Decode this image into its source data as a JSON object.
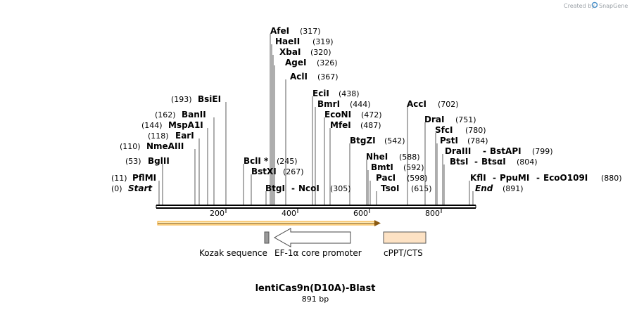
{
  "credit": {
    "prefix": "Created by",
    "brand": "SnapGene"
  },
  "map": {
    "title": "lentiCas9n(D10A)-Blast",
    "length_label": "891 bp",
    "start_label": "Start",
    "start_pos": "(0)",
    "end_label": "End",
    "end_pos": "(891)",
    "ticks": [
      "200",
      "400",
      "600",
      "800"
    ]
  },
  "enzymes": [
    {
      "name": "PflMI",
      "pos": "(11)"
    },
    {
      "name": "BglII",
      "pos": "(53)"
    },
    {
      "name": "NmeAIII",
      "pos": "(110)"
    },
    {
      "name": "EarI",
      "pos": "(118)"
    },
    {
      "name": "MspA1I",
      "pos": "(144)"
    },
    {
      "name": "BanII",
      "pos": "(162)"
    },
    {
      "name": "BsiEI",
      "pos": "(193)"
    },
    {
      "name": "BclI *",
      "pos": "(245)"
    },
    {
      "name": "BstXI",
      "pos": "(267)"
    },
    {
      "name": "BtgI",
      "pos": ""
    },
    {
      "name": "NcoI",
      "pos": "(305)"
    },
    {
      "name": "AfeI",
      "pos": "(317)"
    },
    {
      "name": "HaeII",
      "pos": "(319)"
    },
    {
      "name": "XbaI",
      "pos": "(320)"
    },
    {
      "name": "AgeI",
      "pos": "(326)"
    },
    {
      "name": "AclI",
      "pos": "(367)"
    },
    {
      "name": "EciI",
      "pos": "(438)"
    },
    {
      "name": "BmrI",
      "pos": "(444)"
    },
    {
      "name": "EcoNI",
      "pos": "(472)"
    },
    {
      "name": "MfeI",
      "pos": "(487)"
    },
    {
      "name": "BtgZI",
      "pos": "(542)"
    },
    {
      "name": "NheI",
      "pos": "(588)"
    },
    {
      "name": "BmtI",
      "pos": "(592)"
    },
    {
      "name": "PacI",
      "pos": "(598)"
    },
    {
      "name": "TsoI",
      "pos": "(615)"
    },
    {
      "name": "AccI",
      "pos": "(702)"
    },
    {
      "name": "DraI",
      "pos": "(751)"
    },
    {
      "name": "SfcI",
      "pos": "(780)"
    },
    {
      "name": "PstI",
      "pos": "(784)"
    },
    {
      "name": "DraIII",
      "pos": ""
    },
    {
      "name": "BstAPI",
      "pos": "(799)"
    },
    {
      "name": "BtsI",
      "pos": ""
    },
    {
      "name": "BtsαI",
      "pos": "(804)"
    },
    {
      "name": "KflI",
      "pos": ""
    },
    {
      "name": "PpuMI",
      "pos": ""
    },
    {
      "name": "EcoO109I",
      "pos": "(880)"
    }
  ],
  "features": [
    {
      "name": "Kozak sequence",
      "color": "#9a9a9a"
    },
    {
      "name": "EF-1α core promoter",
      "color": "#ffffff"
    },
    {
      "name": "cPPT/CTS",
      "color": "#fde2c4"
    }
  ],
  "colors": {
    "backbone": "#000000",
    "orf_arrow": "#f5a623",
    "orf_fill": "#fce9b8"
  }
}
